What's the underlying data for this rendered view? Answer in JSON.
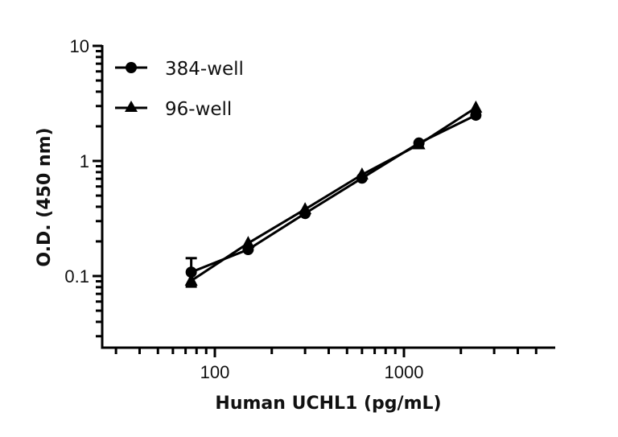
{
  "chart_data": {
    "type": "line",
    "title": "",
    "xlabel": "Human UCHL1 (pg/mL)",
    "ylabel": "O.D. (450 nm)",
    "xscale": "log",
    "yscale": "log",
    "xlim": [
      25,
      6300
    ],
    "ylim": [
      0.024,
      10
    ],
    "x_ticks": [
      100,
      1000
    ],
    "x_tick_labels": [
      "100",
      "1000"
    ],
    "y_ticks": [
      0.1,
      1,
      10
    ],
    "y_tick_labels": [
      "0.1",
      "1",
      "10"
    ],
    "grid": false,
    "legend_position": "upper left",
    "x": [
      75,
      150,
      300,
      600,
      1200,
      2400
    ],
    "series": [
      {
        "name": "384-well",
        "marker": "circle",
        "values": [
          0.108,
          0.17,
          0.35,
          0.71,
          1.43,
          2.5
        ],
        "error": [
          [
            0.081,
            0.143
          ],
          null,
          null,
          null,
          null,
          null
        ]
      },
      {
        "name": "96-well",
        "marker": "triangle",
        "values": [
          0.091,
          0.193,
          0.38,
          0.76,
          1.39,
          2.9
        ],
        "error": [
          null,
          null,
          null,
          null,
          null,
          null
        ]
      }
    ]
  },
  "legend": {
    "items": [
      {
        "label": "384-well",
        "marker": "circle"
      },
      {
        "label": "96-well",
        "marker": "triangle"
      }
    ]
  },
  "axes": {
    "x_title": "Human UCHL1 (pg/mL)",
    "y_title": "O.D. (450 nm)"
  },
  "colors": {
    "line": "#000000",
    "text": "#111111",
    "background": "#ffffff"
  }
}
